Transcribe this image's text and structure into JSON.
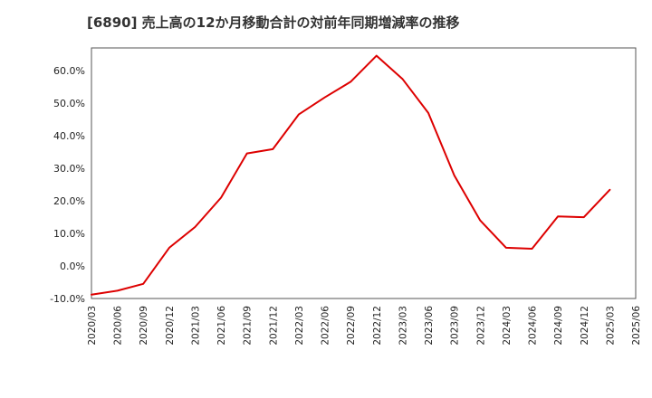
{
  "chart_data": {
    "type": "line",
    "title": "[6890]  売上高の12か月移動合計の対前年同期増減率の推移",
    "xlabel": "",
    "ylabel": "",
    "ylim": [
      -10,
      67
    ],
    "yticks": [
      -10,
      0,
      10,
      20,
      30,
      40,
      50,
      60
    ],
    "ytick_labels": [
      "-10.0%",
      "0.0%",
      "10.0%",
      "20.0%",
      "30.0%",
      "40.0%",
      "50.0%",
      "60.0%"
    ],
    "categories": [
      "2020/03",
      "2020/06",
      "2020/09",
      "2020/12",
      "2021/03",
      "2021/06",
      "2021/09",
      "2021/12",
      "2022/03",
      "2022/06",
      "2022/09",
      "2022/12",
      "2023/03",
      "2023/06",
      "2023/09",
      "2023/12",
      "2024/03",
      "2024/06",
      "2024/09",
      "2024/12",
      "2025/03",
      "2025/06"
    ],
    "series": [
      {
        "name": "増減率",
        "color": "#dd0000",
        "values": [
          -8.8,
          -7.6,
          -5.5,
          5.6,
          12.0,
          21.0,
          34.6,
          35.9,
          46.6,
          51.8,
          56.6,
          64.6,
          57.5,
          47.0,
          27.8,
          14.0,
          5.6,
          5.3,
          15.2,
          15.0,
          23.4,
          null
        ]
      }
    ],
    "grid": true
  }
}
